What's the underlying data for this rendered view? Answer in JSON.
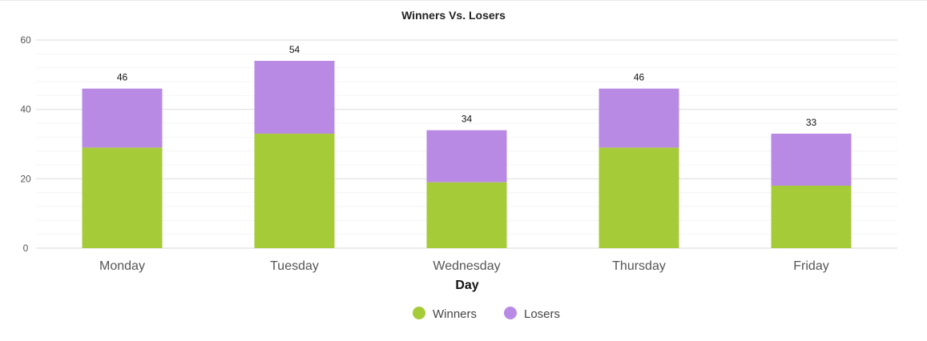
{
  "chart_data": {
    "type": "bar",
    "stacked": true,
    "title": "Winners Vs. Losers",
    "xlabel": "Day",
    "ylabel": "",
    "categories": [
      "Monday",
      "Tuesday",
      "Wednesday",
      "Thursday",
      "Friday"
    ],
    "series": [
      {
        "name": "Winners",
        "values": [
          29,
          33,
          19,
          29,
          18
        ],
        "color": "#a6cb38"
      },
      {
        "name": "Losers",
        "values": [
          17,
          21,
          15,
          17,
          15
        ],
        "color": "#b98ae4"
      }
    ],
    "totals": [
      "46",
      "54",
      "34",
      "46",
      "33"
    ],
    "ylim": [
      0,
      60
    ],
    "yticks": [
      "0",
      "20",
      "40",
      "60"
    ],
    "grid": true,
    "legend_position": "bottom"
  }
}
